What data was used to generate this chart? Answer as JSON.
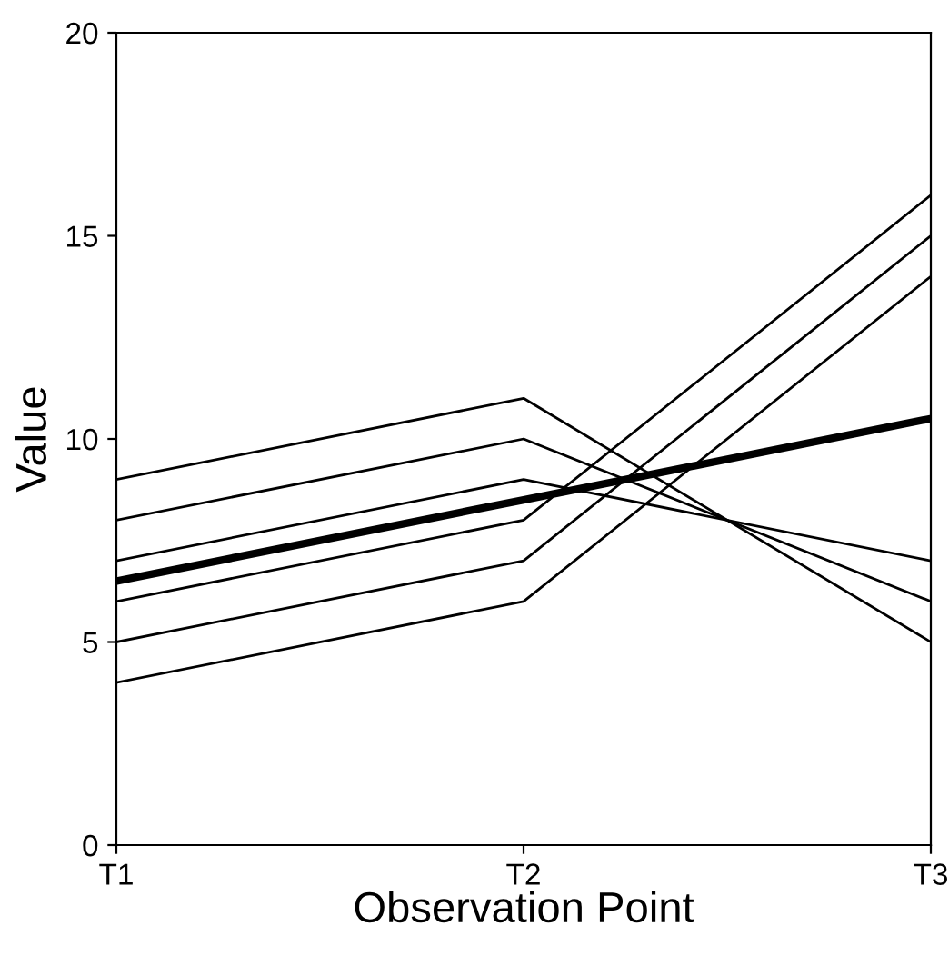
{
  "chart_data": {
    "type": "line",
    "xlabel": "Observation Point",
    "ylabel": "Value",
    "categories": [
      "T1",
      "T2",
      "T3"
    ],
    "series": [
      {
        "color": "#000000",
        "values": [
          4,
          6,
          14
        ]
      },
      {
        "color": "#000000",
        "values": [
          5,
          7,
          15
        ]
      },
      {
        "color": "#000000",
        "values": [
          6,
          8,
          16
        ]
      },
      {
        "color": "#000000",
        "values": [
          7,
          9,
          7
        ]
      },
      {
        "color": "#000000",
        "values": [
          8,
          10,
          6
        ]
      },
      {
        "color": "#000000",
        "values": [
          9,
          11,
          5
        ]
      },
      {
        "color": "#000000",
        "values": [
          6.5,
          8.5,
          10.5
        ]
      }
    ],
    "ylim": [
      0,
      20
    ],
    "yticks": [
      0,
      5,
      10,
      15,
      20
    ],
    "grid": false,
    "legend": false,
    "marker": "none",
    "line_style": "solid"
  }
}
